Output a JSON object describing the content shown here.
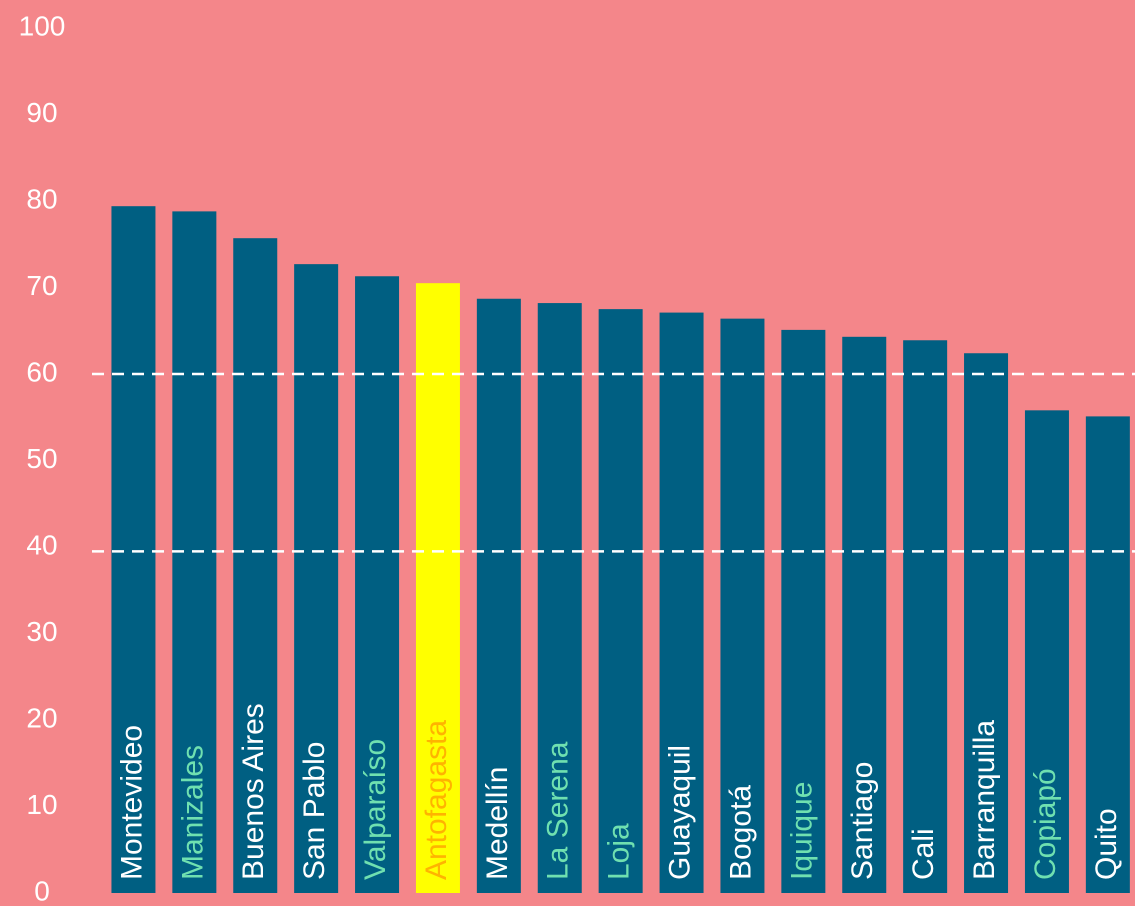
{
  "chart_data": {
    "type": "bar",
    "categories": [
      "Montevideo",
      "Manizales",
      "Buenos Aires",
      "San Pablo",
      "Valparaíso",
      "Antofagasta",
      "Medellín",
      "La Serena",
      "Loja",
      "Guayaquil",
      "Bogotá",
      "Iquique",
      "Santiago",
      "Cali",
      "Barranquilla",
      "Copiapó",
      "Quito"
    ],
    "values": [
      79.4,
      78.8,
      75.7,
      72.7,
      71.3,
      70.5,
      68.7,
      68.2,
      67.5,
      67.1,
      66.4,
      65.1,
      64.3,
      63.9,
      62.4,
      55.8,
      55.1
    ],
    "colors": [
      "#005f82",
      "#005f82",
      "#005f82",
      "#005f82",
      "#005f82",
      "#ffff00",
      "#005f82",
      "#005f82",
      "#005f82",
      "#005f82",
      "#005f82",
      "#005f82",
      "#005f82",
      "#005f82",
      "#005f82",
      "#005f82",
      "#005f82"
    ],
    "label_colors": [
      "#ffffff",
      "#6fe0b0",
      "#ffffff",
      "#ffffff",
      "#6fe0b0",
      "#ffb300",
      "#ffffff",
      "#6fe0b0",
      "#6fe0b0",
      "#ffffff",
      "#ffffff",
      "#6fe0b0",
      "#ffffff",
      "#ffffff",
      "#ffffff",
      "#6fe0b0",
      "#ffffff"
    ],
    "ylim": [
      0,
      100
    ],
    "yticks": [
      0,
      10,
      20,
      30,
      40,
      50,
      60,
      70,
      80,
      90,
      100
    ],
    "reference_lines": [
      60,
      39.5
    ],
    "grid": false
  }
}
